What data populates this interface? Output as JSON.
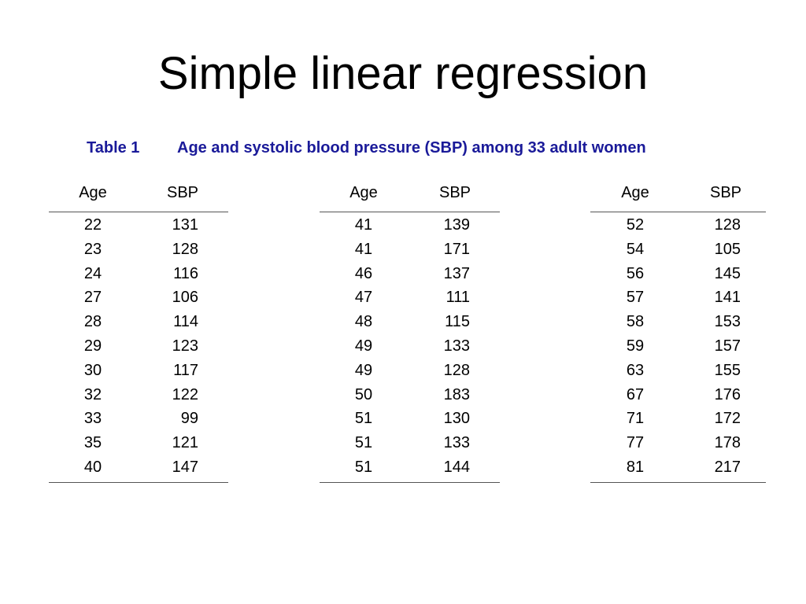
{
  "title": "Simple linear regression",
  "caption": {
    "label": "Table 1",
    "text": "Age and systolic blood pressure (SBP) among 33 adult women",
    "color": "#1a1a99"
  },
  "table": {
    "headers": {
      "age": "Age",
      "sbp": "SBP"
    },
    "blocks": [
      {
        "rows": [
          [
            "22",
            "131"
          ],
          [
            "23",
            "128"
          ],
          [
            "24",
            "116"
          ],
          [
            "27",
            "106"
          ],
          [
            "28",
            "114"
          ],
          [
            "29",
            "123"
          ],
          [
            "30",
            "117"
          ],
          [
            "32",
            "122"
          ],
          [
            "33",
            "99"
          ],
          [
            "35",
            "121"
          ],
          [
            "40",
            "147"
          ]
        ]
      },
      {
        "rows": [
          [
            "41",
            "139"
          ],
          [
            "41",
            "171"
          ],
          [
            "46",
            "137"
          ],
          [
            "47",
            "111"
          ],
          [
            "48",
            "115"
          ],
          [
            "49",
            "133"
          ],
          [
            "49",
            "128"
          ],
          [
            "50",
            "183"
          ],
          [
            "51",
            "130"
          ],
          [
            "51",
            "133"
          ],
          [
            "51",
            "144"
          ]
        ]
      },
      {
        "rows": [
          [
            "52",
            "128"
          ],
          [
            "54",
            "105"
          ],
          [
            "56",
            "145"
          ],
          [
            "57",
            "141"
          ],
          [
            "58",
            "153"
          ],
          [
            "59",
            "157"
          ],
          [
            "63",
            "155"
          ],
          [
            "67",
            "176"
          ],
          [
            "71",
            "172"
          ],
          [
            "77",
            "178"
          ],
          [
            "81",
            "217"
          ]
        ]
      }
    ]
  }
}
